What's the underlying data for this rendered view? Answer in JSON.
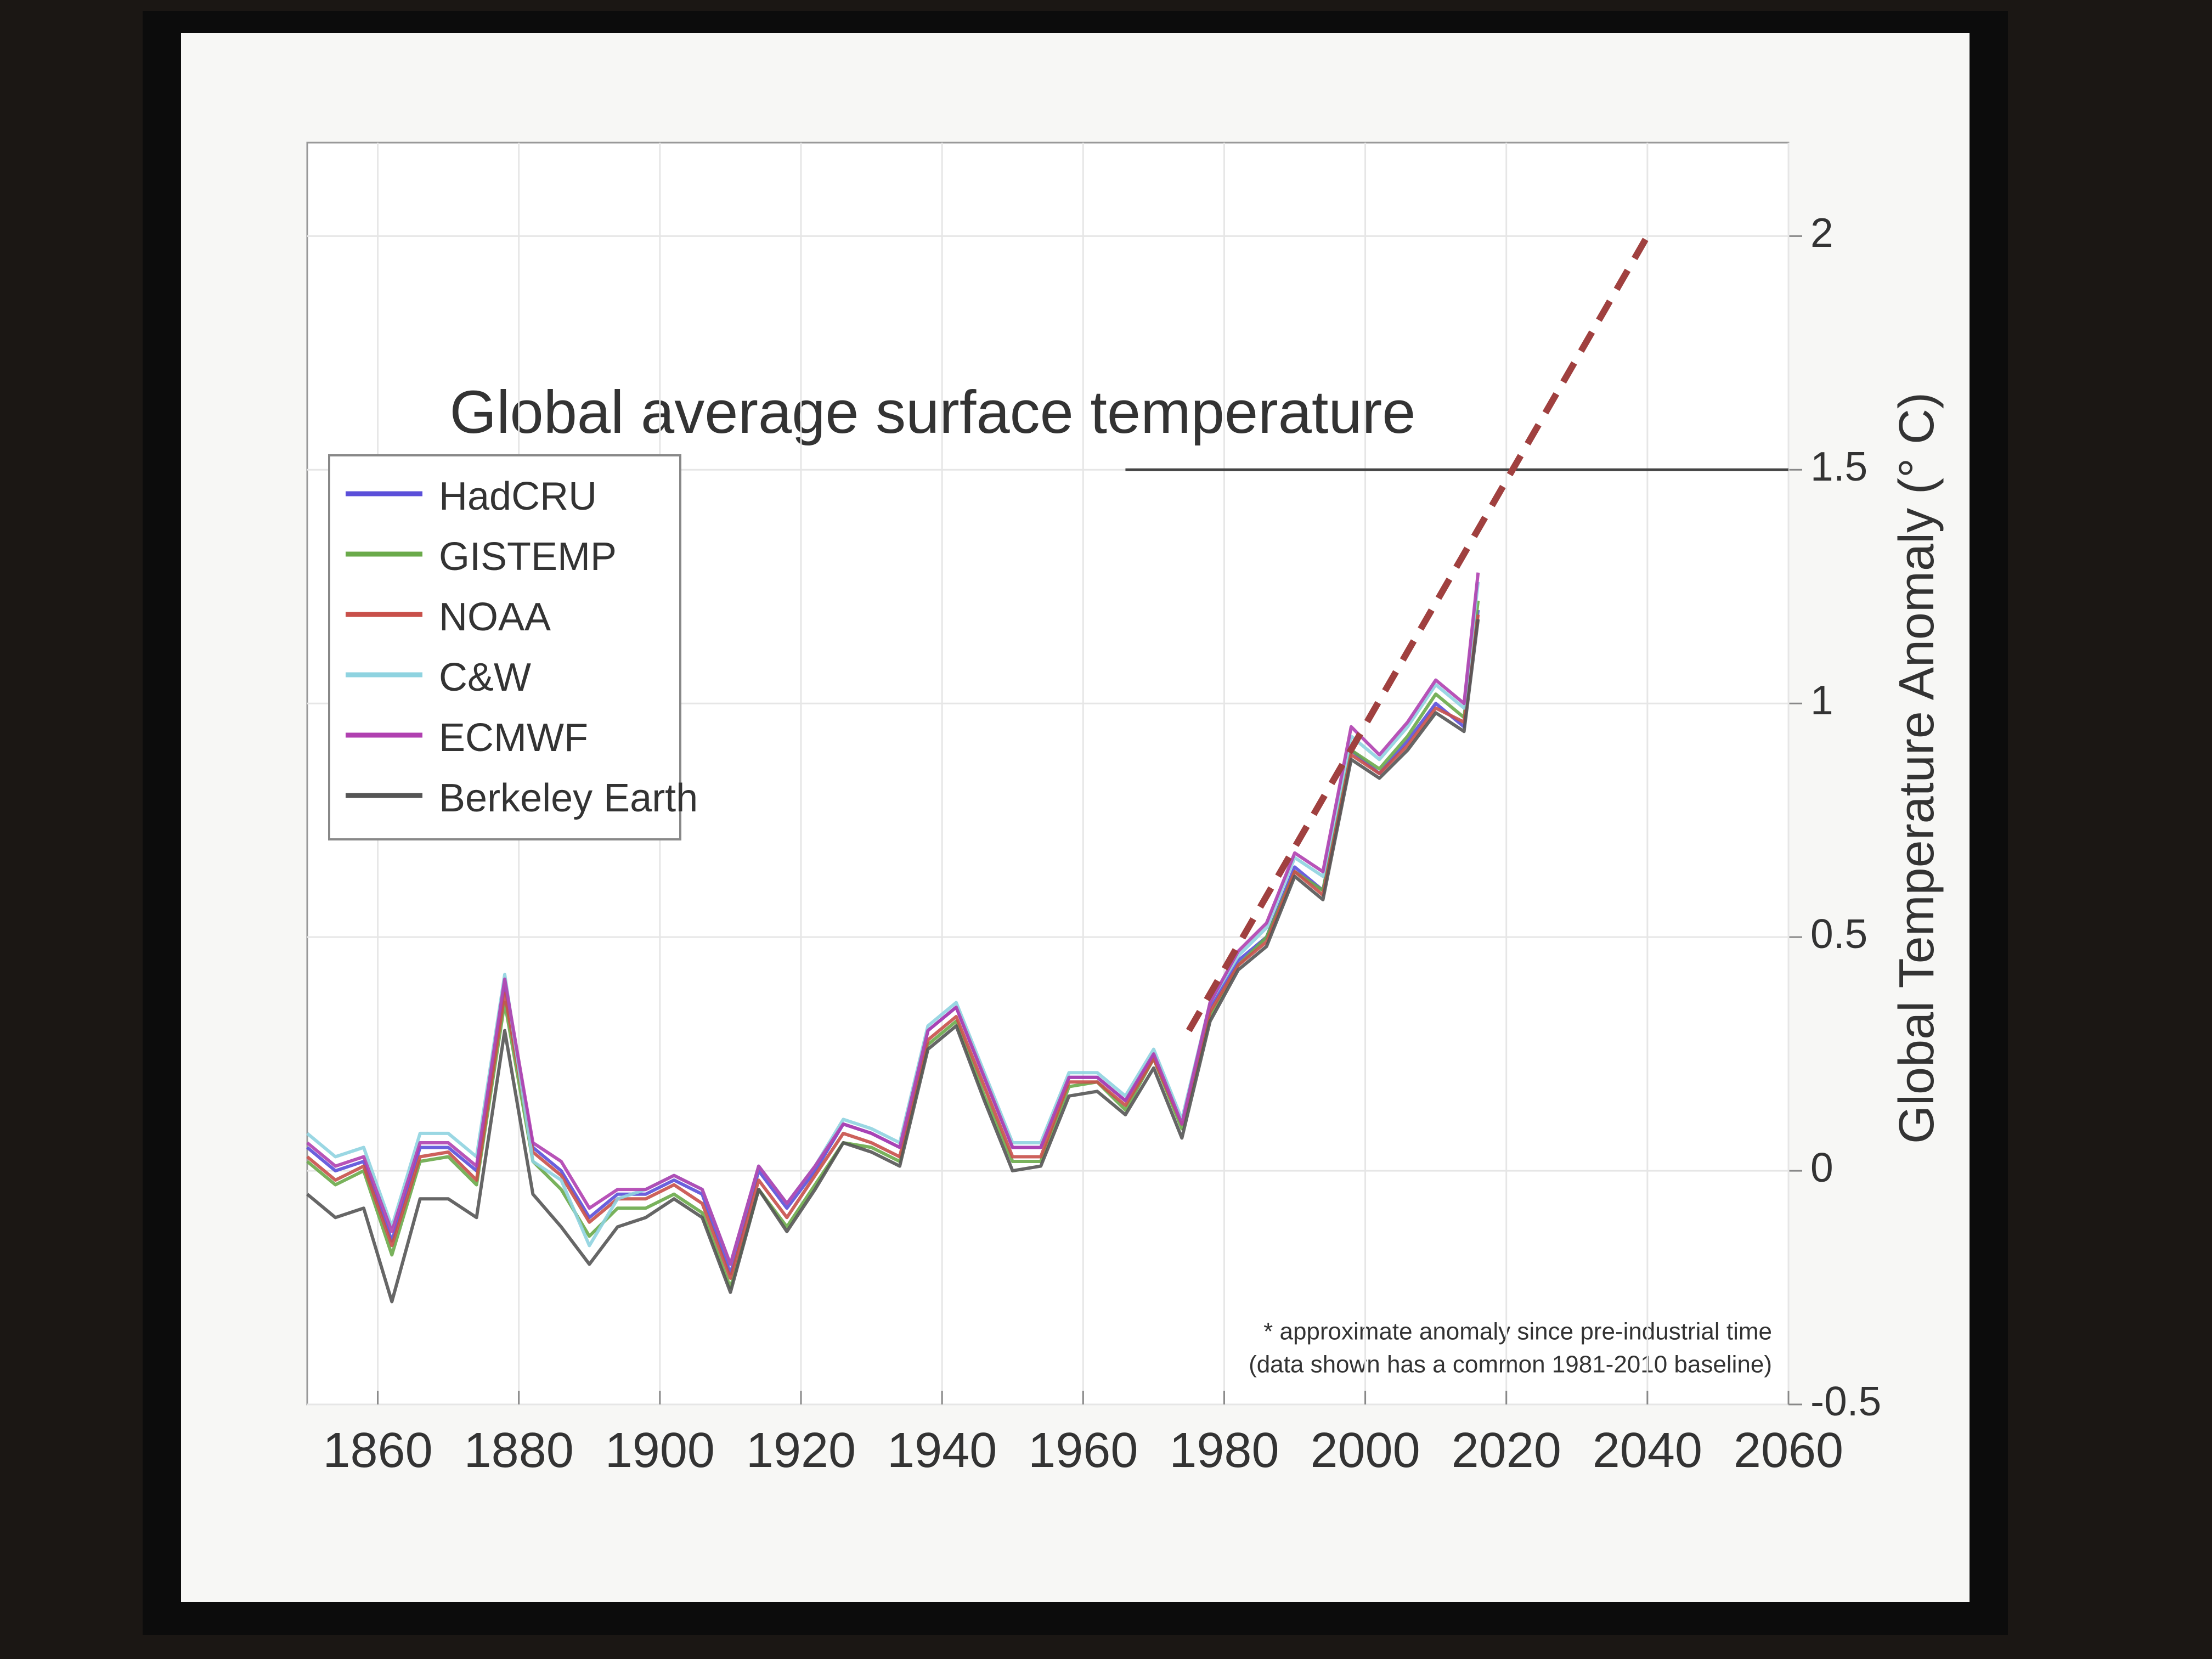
{
  "chart_data": {
    "type": "line",
    "title": "Global average surface temperature",
    "y_label": "Global Temperature Anomaly (° C)",
    "footnote": [
      "* approximate anomaly since pre-industrial time",
      "(data shown has a common 1981-2010 baseline)"
    ],
    "x": [
      1850,
      1854,
      1858,
      1862,
      1866,
      1870,
      1874,
      1878,
      1882,
      1886,
      1890,
      1894,
      1898,
      1902,
      1906,
      1910,
      1914,
      1918,
      1922,
      1926,
      1930,
      1934,
      1938,
      1942,
      1946,
      1950,
      1954,
      1958,
      1962,
      1966,
      1970,
      1974,
      1978,
      1982,
      1986,
      1990,
      1994,
      1998,
      2002,
      2006,
      2010,
      2014,
      2016
    ],
    "series": [
      {
        "name": "HadCRU",
        "color": "#5b4fd9",
        "values": [
          0.05,
          0.0,
          0.02,
          -0.15,
          0.05,
          0.05,
          0.0,
          0.4,
          0.05,
          0.0,
          -0.1,
          -0.05,
          -0.05,
          -0.02,
          -0.05,
          -0.22,
          0.0,
          -0.08,
          0.0,
          0.1,
          0.08,
          0.05,
          0.3,
          0.35,
          0.2,
          0.05,
          0.05,
          0.2,
          0.2,
          0.15,
          0.25,
          0.1,
          0.35,
          0.45,
          0.5,
          0.65,
          0.6,
          0.9,
          0.85,
          0.92,
          1.0,
          0.95,
          1.2
        ]
      },
      {
        "name": "GISTEMP",
        "color": "#6aaa4a",
        "values": [
          0.02,
          -0.03,
          0.0,
          -0.18,
          0.02,
          0.03,
          -0.03,
          0.36,
          0.02,
          -0.04,
          -0.14,
          -0.08,
          -0.08,
          -0.05,
          -0.09,
          -0.25,
          -0.04,
          -0.12,
          -0.03,
          0.06,
          0.05,
          0.02,
          0.27,
          0.32,
          0.16,
          0.02,
          0.02,
          0.18,
          0.19,
          0.13,
          0.24,
          0.09,
          0.33,
          0.44,
          0.5,
          0.64,
          0.6,
          0.9,
          0.86,
          0.93,
          1.02,
          0.97,
          1.22
        ]
      },
      {
        "name": "NOAA",
        "color": "#c8504a",
        "values": [
          0.03,
          -0.02,
          0.01,
          -0.16,
          0.03,
          0.04,
          -0.02,
          0.38,
          0.04,
          -0.01,
          -0.11,
          -0.06,
          -0.06,
          -0.03,
          -0.07,
          -0.23,
          -0.02,
          -0.1,
          -0.01,
          0.08,
          0.06,
          0.03,
          0.28,
          0.33,
          0.18,
          0.03,
          0.03,
          0.19,
          0.19,
          0.14,
          0.24,
          0.1,
          0.34,
          0.44,
          0.49,
          0.64,
          0.59,
          0.89,
          0.85,
          0.91,
          0.99,
          0.96,
          1.19
        ]
      },
      {
        "name": "C&W",
        "color": "#8fd3e0",
        "values": [
          0.08,
          0.03,
          0.05,
          -0.12,
          0.08,
          0.08,
          0.03,
          0.42,
          0.02,
          -0.02,
          -0.16,
          -0.06,
          -0.04,
          -0.01,
          -0.04,
          -0.2,
          0.01,
          -0.07,
          0.01,
          0.11,
          0.09,
          0.06,
          0.31,
          0.36,
          0.21,
          0.06,
          0.06,
          0.21,
          0.21,
          0.16,
          0.26,
          0.11,
          0.36,
          0.46,
          0.52,
          0.67,
          0.63,
          0.93,
          0.88,
          0.95,
          1.04,
          0.99,
          1.26
        ]
      },
      {
        "name": "ECMWF",
        "color": "#b040b0",
        "values": [
          0.06,
          0.01,
          0.03,
          -0.13,
          0.06,
          0.06,
          0.01,
          0.41,
          0.06,
          0.02,
          -0.08,
          -0.04,
          -0.04,
          -0.01,
          -0.04,
          -0.2,
          0.01,
          -0.07,
          0.01,
          0.1,
          0.08,
          0.05,
          0.3,
          0.35,
          0.2,
          0.05,
          0.05,
          0.2,
          0.2,
          0.15,
          0.25,
          0.1,
          0.36,
          0.47,
          0.53,
          0.68,
          0.64,
          0.95,
          0.89,
          0.96,
          1.05,
          1.0,
          1.28
        ]
      },
      {
        "name": "Berkeley Earth",
        "color": "#555555",
        "values": [
          -0.05,
          -0.1,
          -0.08,
          -0.28,
          -0.06,
          -0.06,
          -0.1,
          0.3,
          -0.05,
          -0.12,
          -0.2,
          -0.12,
          -0.1,
          -0.06,
          -0.1,
          -0.26,
          -0.04,
          -0.13,
          -0.04,
          0.06,
          0.04,
          0.01,
          0.26,
          0.31,
          0.15,
          0.0,
          0.01,
          0.16,
          0.17,
          0.12,
          0.22,
          0.07,
          0.32,
          0.43,
          0.48,
          0.63,
          0.58,
          0.88,
          0.84,
          0.9,
          0.98,
          0.94,
          1.18
        ]
      }
    ],
    "projection": {
      "color": "#a0403f",
      "x": [
        1975,
        2040
      ],
      "values": [
        0.3,
        2.0
      ]
    },
    "reference_line": {
      "y": 1.5,
      "x": [
        1966,
        2060
      ]
    },
    "xlim": [
      1850,
      2060
    ],
    "xticks": [
      1860,
      1880,
      1900,
      1920,
      1940,
      1960,
      1980,
      2000,
      2020,
      2040,
      2060
    ],
    "ylim": [
      -0.5,
      2.2
    ],
    "yticks": [
      -0.5,
      0,
      0.5,
      1,
      1.5,
      2
    ],
    "grid": true
  }
}
